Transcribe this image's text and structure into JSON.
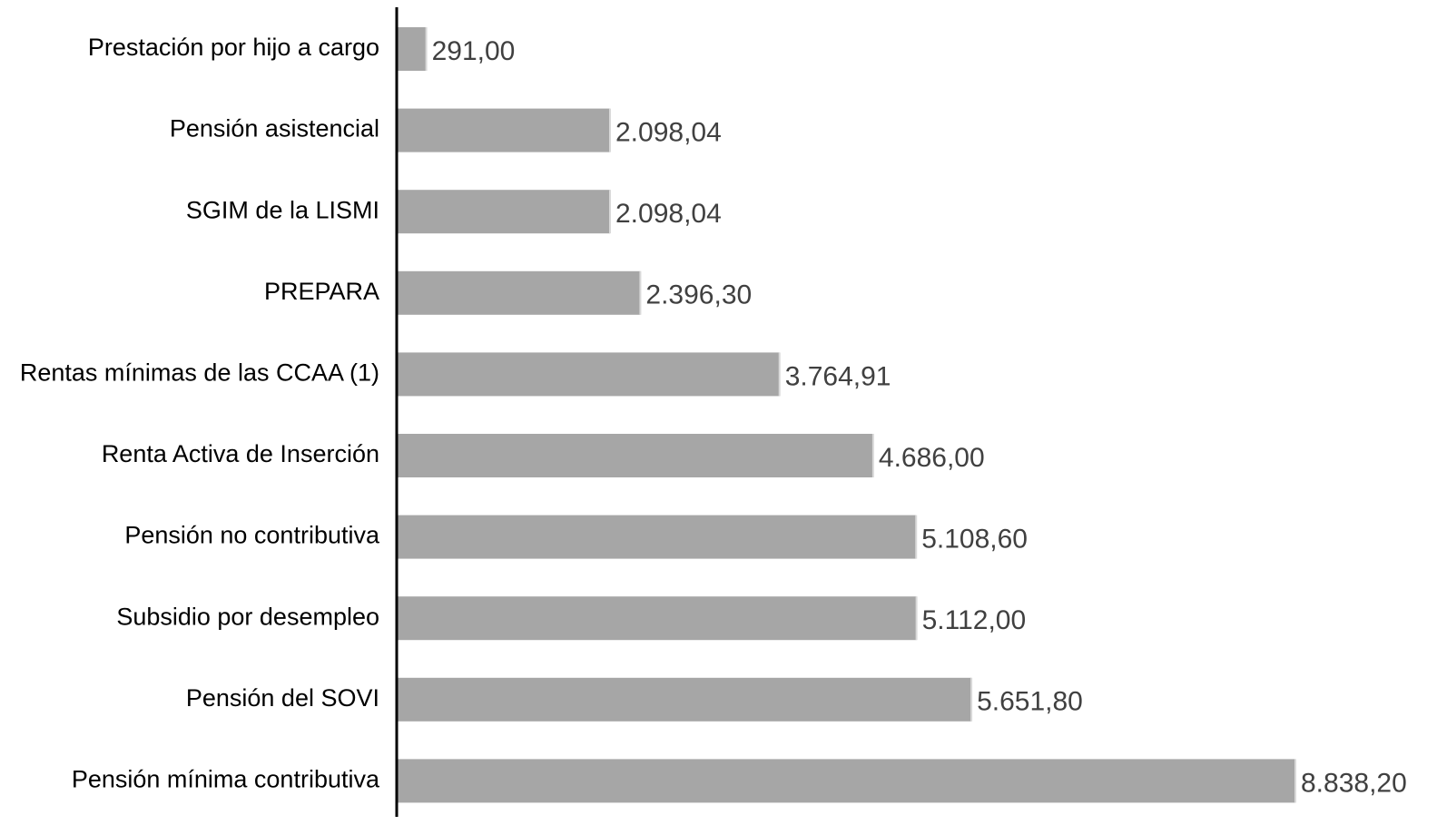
{
  "chart_data": {
    "type": "bar",
    "orientation": "horizontal",
    "categories": [
      "Prestación por hijo a cargo",
      "Pensión asistencial",
      "SGIM de la LISMI",
      "PREPARA",
      "Rentas mínimas de las CCAA (1)",
      "Renta Activa de Inserción",
      "Pensión no contributiva",
      "Subsidio por desempleo",
      "Pensión del SOVI",
      "Pensión mínima contributiva"
    ],
    "values": [
      291.0,
      2098.04,
      2098.04,
      2396.3,
      3764.91,
      4686.0,
      5108.6,
      5112.0,
      5651.8,
      8838.2
    ],
    "value_labels": [
      "291,00",
      "2.098,04",
      "2.098,04",
      "2.396,30",
      "3.764,91",
      "4.686,00",
      "5.108,60",
      "5.112,00",
      "5.651,80",
      "8.838,20"
    ],
    "color": "#a6a6a6"
  }
}
